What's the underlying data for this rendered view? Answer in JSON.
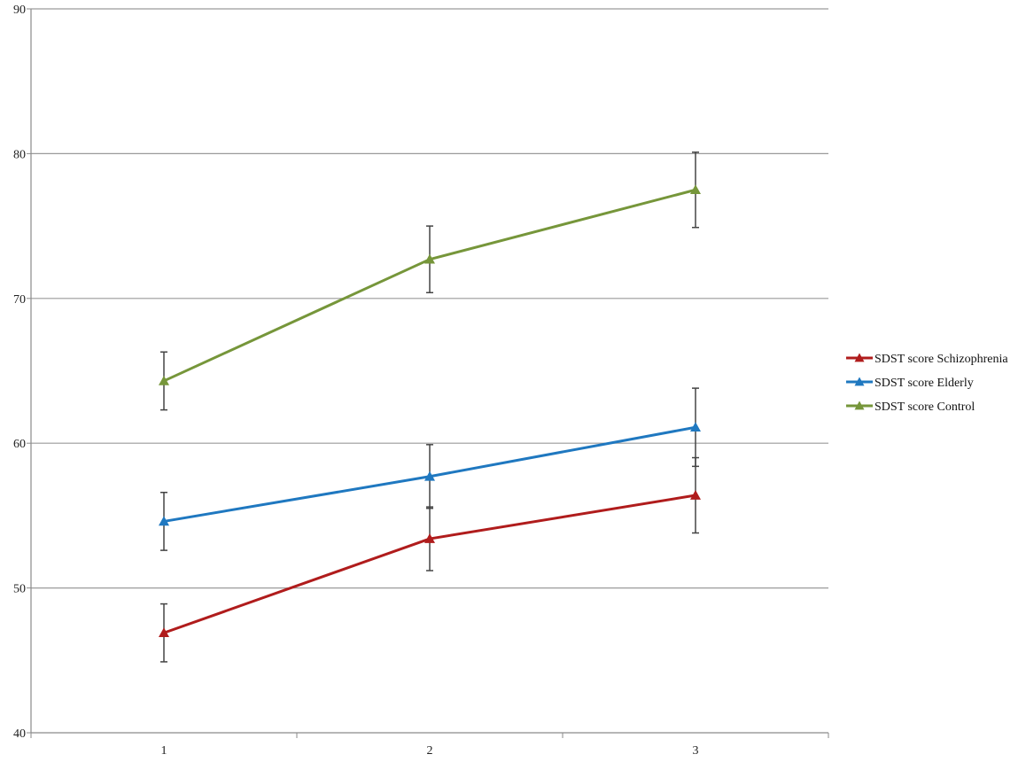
{
  "chart_data": {
    "type": "line",
    "x": [
      "1",
      "2",
      "3"
    ],
    "ylim": [
      40,
      90
    ],
    "yticks": [
      "40",
      "50",
      "60",
      "70",
      "80",
      "90"
    ],
    "grid": true,
    "legend_position": "right",
    "series": [
      {
        "name": "SDST score Schizophrenia",
        "color": "#b01c1c",
        "marker": "triangle",
        "values": [
          46.9,
          53.4,
          56.4
        ],
        "error": [
          2.0,
          2.2,
          2.6
        ]
      },
      {
        "name": "SDST score Elderly",
        "color": "#1f78c0",
        "marker": "triangle",
        "values": [
          54.6,
          57.7,
          61.1
        ],
        "error": [
          2.0,
          2.2,
          2.7
        ]
      },
      {
        "name": "SDST score Control",
        "color": "#76963a",
        "marker": "triangle",
        "values": [
          64.3,
          72.7,
          77.5
        ],
        "error": [
          2.0,
          2.3,
          2.6
        ]
      }
    ]
  }
}
